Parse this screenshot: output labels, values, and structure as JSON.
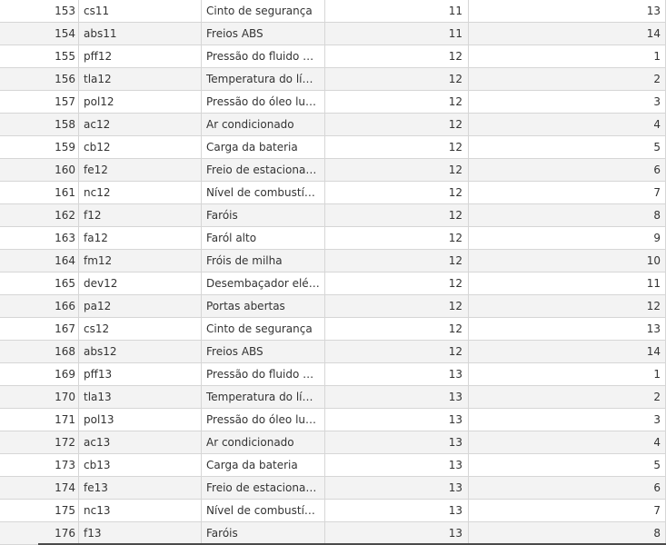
{
  "table": {
    "rows": [
      {
        "id": "153",
        "code": "cs11",
        "desc": "Cinto de segurança",
        "group": "11",
        "order": "13"
      },
      {
        "id": "154",
        "code": "abs11",
        "desc": "Freios ABS",
        "group": "11",
        "order": "14"
      },
      {
        "id": "155",
        "code": "pff12",
        "desc": "Pressão do fluido do freio",
        "group": "12",
        "order": "1"
      },
      {
        "id": "156",
        "code": "tla12",
        "desc": "Temperatura do líquido",
        "group": "12",
        "order": "2"
      },
      {
        "id": "157",
        "code": "pol12",
        "desc": "Pressão do óleo lubrificante",
        "group": "12",
        "order": "3"
      },
      {
        "id": "158",
        "code": "ac12",
        "desc": "Ar condicionado",
        "group": "12",
        "order": "4"
      },
      {
        "id": "159",
        "code": "cb12",
        "desc": "Carga da bateria",
        "group": "12",
        "order": "5"
      },
      {
        "id": "160",
        "code": "fe12",
        "desc": "Freio de estacionamento",
        "group": "12",
        "order": "6"
      },
      {
        "id": "161",
        "code": "nc12",
        "desc": "Nível de combustível",
        "group": "12",
        "order": "7"
      },
      {
        "id": "162",
        "code": "f12",
        "desc": "Faróis",
        "group": "12",
        "order": "8"
      },
      {
        "id": "163",
        "code": "fa12",
        "desc": "Faról alto",
        "group": "12",
        "order": "9"
      },
      {
        "id": "164",
        "code": "fm12",
        "desc": "Fróis de milha",
        "group": "12",
        "order": "10"
      },
      {
        "id": "165",
        "code": "dev12",
        "desc": "Desembaçador elétrico",
        "group": "12",
        "order": "11"
      },
      {
        "id": "166",
        "code": "pa12",
        "desc": "Portas abertas",
        "group": "12",
        "order": "12"
      },
      {
        "id": "167",
        "code": "cs12",
        "desc": "Cinto de segurança",
        "group": "12",
        "order": "13"
      },
      {
        "id": "168",
        "code": "abs12",
        "desc": "Freios ABS",
        "group": "12",
        "order": "14"
      },
      {
        "id": "169",
        "code": "pff13",
        "desc": "Pressão do fluido do freio",
        "group": "13",
        "order": "1"
      },
      {
        "id": "170",
        "code": "tla13",
        "desc": "Temperatura do líquido",
        "group": "13",
        "order": "2"
      },
      {
        "id": "171",
        "code": "pol13",
        "desc": "Pressão do óleo lubrificante",
        "group": "13",
        "order": "3"
      },
      {
        "id": "172",
        "code": "ac13",
        "desc": "Ar condicionado",
        "group": "13",
        "order": "4"
      },
      {
        "id": "173",
        "code": "cb13",
        "desc": "Carga da bateria",
        "group": "13",
        "order": "5"
      },
      {
        "id": "174",
        "code": "fe13",
        "desc": "Freio de estacionamento",
        "group": "13",
        "order": "6"
      },
      {
        "id": "175",
        "code": "nc13",
        "desc": "Nível de combustível",
        "group": "13",
        "order": "7"
      },
      {
        "id": "176",
        "code": "f13",
        "desc": "Faróis",
        "group": "13",
        "order": "8"
      }
    ]
  }
}
